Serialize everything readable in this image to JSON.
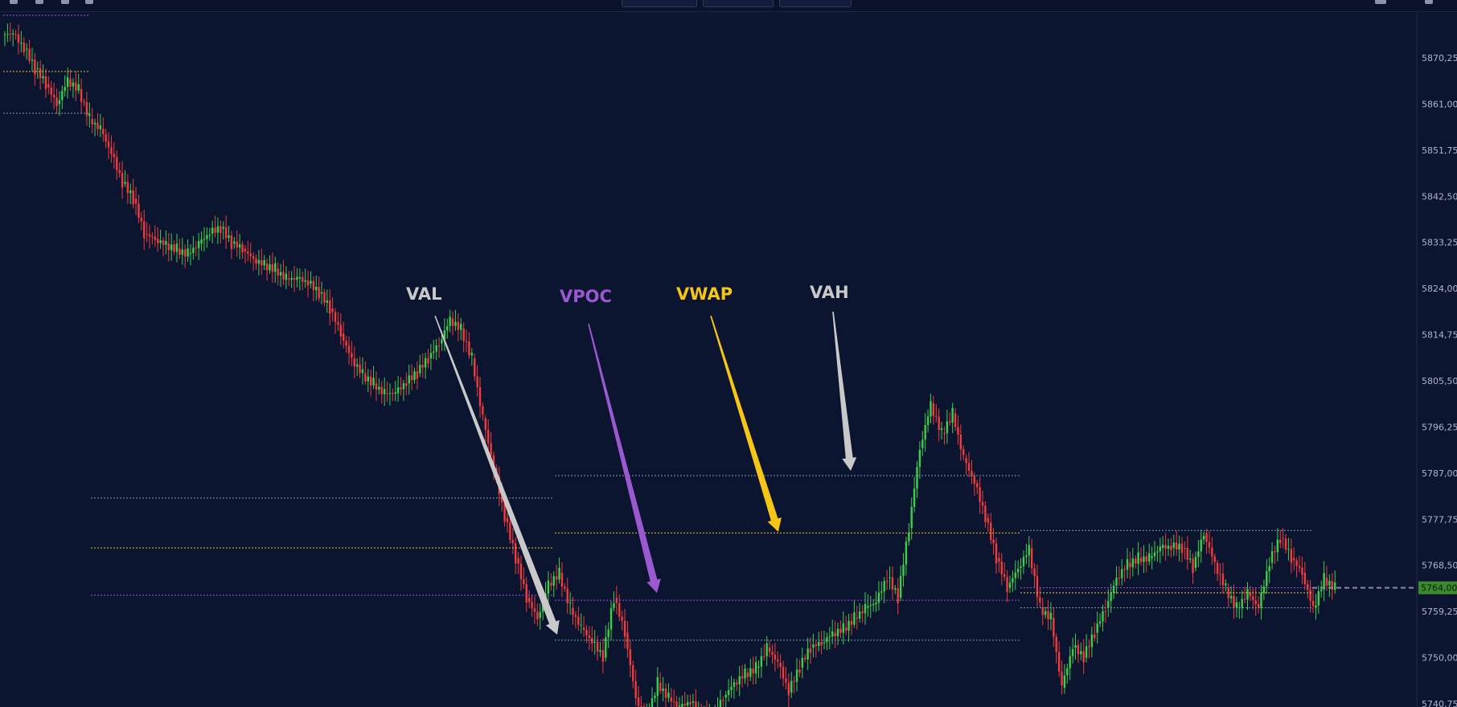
{
  "colors": {
    "background": "#0c1530",
    "up_candle": "#3ecf4a",
    "down_candle": "#f23b3b",
    "vah_val_line": "#6fa3b0",
    "vwap_line": "#e6c230",
    "vpoc_line": "#a64fd6",
    "annotation_gray": "#c9c9c9",
    "annotation_vpoc": "#9b59d0",
    "annotation_vwap": "#f5c518",
    "price_tag": "#3b8a2e"
  },
  "toolbar": {
    "icons": [
      "indicators-icon",
      "bar-chart-icon",
      "alert-icon",
      "settings-icon",
      "camera-icon"
    ]
  },
  "chart_data": {
    "type": "line",
    "title": "",
    "xlabel": "",
    "ylabel": "",
    "ylim": [
      5737,
      5878
    ],
    "y_ticks": [
      "5870,25",
      "5861,00",
      "5851,75",
      "5842,50",
      "5833,25",
      "5824,00",
      "5814,75",
      "5805,50",
      "5796,25",
      "5787,00",
      "5777,75",
      "5768,50",
      "5759,25",
      "5750,00",
      "5740,75"
    ],
    "last_price": "5764,00",
    "price_series": [
      5875,
      5872,
      5868,
      5865,
      5861,
      5866,
      5864,
      5858,
      5856,
      5851,
      5845,
      5842,
      5835,
      5834,
      5833,
      5832,
      5831,
      5833,
      5835,
      5836,
      5833,
      5832,
      5830,
      5829,
      5828,
      5826,
      5826,
      5825,
      5823,
      5820,
      5815,
      5810,
      5807,
      5805,
      5803,
      5803,
      5805,
      5807,
      5810,
      5813,
      5818,
      5816,
      5810,
      5798,
      5788,
      5778,
      5770,
      5762,
      5758,
      5765,
      5767,
      5760,
      5756,
      5753,
      5750,
      5762,
      5755,
      5742,
      5738,
      5745,
      5742,
      5740,
      5741,
      5738,
      5738,
      5742,
      5745,
      5747,
      5748,
      5752,
      5749,
      5743,
      5748,
      5752,
      5753,
      5755,
      5756,
      5758,
      5760,
      5761,
      5766,
      5762,
      5776,
      5792,
      5801,
      5795,
      5799,
      5790,
      5785,
      5778,
      5770,
      5764,
      5768,
      5772,
      5760,
      5758,
      5744,
      5752,
      5750,
      5755,
      5760,
      5766,
      5769,
      5770,
      5770,
      5772,
      5772,
      5772,
      5768,
      5775,
      5769,
      5764,
      5760,
      5763,
      5760,
      5769,
      5774,
      5770,
      5767,
      5760,
      5766,
      5764
    ],
    "profiles": [
      {
        "vah": 5782,
        "vwap": 5772,
        "vpoc": 5762.5
      },
      {
        "vah": 5786.5,
        "vwap": 5775,
        "vpoc": 5761.5,
        "val": 5753.5
      },
      {
        "vah": 5775.5,
        "vwap": 5763,
        "vpoc": 5764,
        "val": 5760
      }
    ],
    "annotations": [
      {
        "label": "VAL"
      },
      {
        "label": "VPOC"
      },
      {
        "label": "VWAP"
      },
      {
        "label": "VAH"
      }
    ]
  }
}
